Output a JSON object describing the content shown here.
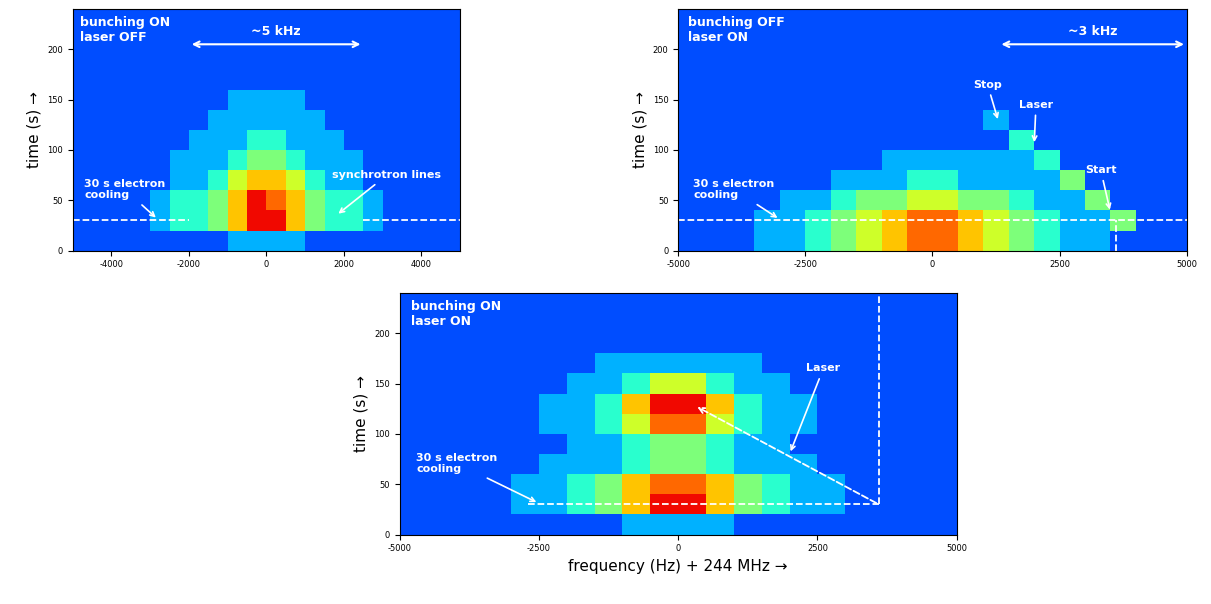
{
  "chart_data": [
    {
      "type": "heatmap",
      "color": "jet",
      "color_range": [
        0,
        10
      ],
      "label": "bunching ON\nlaser OFF",
      "ylabel": "time (s) →",
      "xlim": [
        -5000,
        5000
      ],
      "xticks": [
        -4000,
        -2000,
        0,
        2000,
        4000
      ],
      "ylim": [
        0,
        240
      ],
      "yticks": [
        0,
        50,
        100,
        150,
        200
      ],
      "x_edges": [
        -5000,
        -4500,
        -4000,
        -3500,
        -3000,
        -2500,
        -2000,
        -1500,
        -1000,
        -500,
        0,
        500,
        1000,
        1500,
        2000,
        2500,
        3000,
        3500,
        4000,
        4500,
        5000
      ],
      "y_edges": [
        0,
        20,
        40,
        60,
        80,
        100,
        120,
        140,
        160,
        180,
        200,
        220,
        240
      ],
      "cells": [
        [
          2,
          2,
          2,
          2,
          2,
          2,
          2,
          2,
          3,
          3,
          3,
          3,
          2,
          2,
          2,
          2,
          2,
          2,
          2,
          2
        ],
        [
          2,
          2,
          2,
          2,
          3,
          4,
          4,
          5,
          7,
          9,
          9,
          7,
          5,
          4,
          4,
          3,
          2,
          2,
          2,
          2
        ],
        [
          2,
          2,
          2,
          2,
          3,
          4,
          4,
          5,
          7,
          9,
          8,
          7,
          5,
          4,
          4,
          3,
          2,
          2,
          2,
          2
        ],
        [
          2,
          2,
          2,
          2,
          2,
          3,
          3,
          4,
          6,
          7,
          7,
          6,
          4,
          3,
          3,
          2,
          2,
          2,
          2,
          2
        ],
        [
          2,
          2,
          2,
          2,
          2,
          3,
          3,
          3,
          4,
          5,
          5,
          4,
          3,
          3,
          3,
          2,
          2,
          2,
          2,
          2
        ],
        [
          2,
          2,
          2,
          2,
          2,
          2,
          3,
          3,
          3,
          4,
          4,
          3,
          3,
          3,
          2,
          2,
          2,
          2,
          2,
          2
        ],
        [
          2,
          2,
          2,
          2,
          2,
          2,
          2,
          3,
          3,
          3,
          3,
          3,
          3,
          2,
          2,
          2,
          2,
          2,
          2,
          2
        ],
        [
          2,
          2,
          2,
          2,
          2,
          2,
          2,
          2,
          3,
          3,
          3,
          3,
          2,
          2,
          2,
          2,
          2,
          2,
          2,
          2
        ],
        [
          2,
          2,
          2,
          2,
          2,
          2,
          2,
          2,
          2,
          2,
          2,
          2,
          2,
          2,
          2,
          2,
          2,
          2,
          2,
          2
        ],
        [
          2,
          2,
          2,
          2,
          2,
          2,
          2,
          2,
          2,
          2,
          2,
          2,
          2,
          2,
          2,
          2,
          2,
          2,
          2,
          2
        ],
        [
          2,
          2,
          2,
          2,
          2,
          2,
          2,
          2,
          2,
          2,
          2,
          2,
          2,
          2,
          2,
          2,
          2,
          2,
          2,
          2
        ],
        [
          2,
          2,
          2,
          2,
          2,
          2,
          2,
          2,
          2,
          2,
          2,
          2,
          2,
          2,
          2,
          2,
          2,
          2,
          2,
          2
        ]
      ],
      "spans": [
        {
          "text": "~5 kHz",
          "x": [
            -2000,
            2500
          ],
          "y": 205
        }
      ],
      "annotations": [
        {
          "text": "30 s electron\ncooling",
          "x": -2800,
          "y": 31,
          "text_x": -4700,
          "text_y": 50
        },
        {
          "text": "synchrotron lines",
          "x": 1800,
          "y": 35,
          "text_x": 1700,
          "text_y": 70
        }
      ],
      "lines": [
        {
          "x": [
            -5000,
            -2000
          ],
          "y": [
            30,
            30
          ],
          "line_style": "dashed"
        },
        {
          "x": [
            2500,
            5000
          ],
          "y": [
            30,
            30
          ],
          "line_style": "dashed"
        }
      ],
      "arrows": []
    },
    {
      "type": "heatmap",
      "color": "jet",
      "color_range": [
        0,
        10
      ],
      "label": "bunching OFF\nlaser ON",
      "ylabel": "time (s) →",
      "xlim": [
        -5000,
        5000
      ],
      "xticks": [
        -5000,
        -2500,
        0,
        2500,
        5000
      ],
      "ylim": [
        0,
        240
      ],
      "yticks": [
        0,
        50,
        100,
        150,
        200
      ],
      "x_edges": [
        -5000,
        -4500,
        -4000,
        -3500,
        -3000,
        -2500,
        -2000,
        -1500,
        -1000,
        -500,
        0,
        500,
        1000,
        1500,
        2000,
        2500,
        3000,
        3500,
        4000,
        4500,
        5000
      ],
      "y_edges": [
        0,
        20,
        40,
        60,
        80,
        100,
        120,
        140,
        160,
        180,
        200,
        220,
        240
      ],
      "cells": [
        [
          2,
          2,
          2,
          3,
          3,
          4,
          5,
          6,
          7,
          8,
          8,
          7,
          6,
          5,
          4,
          3,
          3,
          2,
          2,
          2
        ],
        [
          2,
          2,
          2,
          3,
          3,
          4,
          5,
          6,
          7,
          8,
          8,
          7,
          6,
          5,
          4,
          3,
          3,
          5,
          2,
          2
        ],
        [
          2,
          2,
          2,
          2,
          3,
          3,
          4,
          5,
          5,
          6,
          6,
          5,
          5,
          4,
          3,
          3,
          5,
          2,
          2,
          2
        ],
        [
          2,
          2,
          2,
          2,
          2,
          2,
          3,
          3,
          3,
          4,
          4,
          3,
          3,
          3,
          3,
          5,
          2,
          2,
          2,
          2
        ],
        [
          2,
          2,
          2,
          2,
          2,
          2,
          2,
          2,
          3,
          3,
          3,
          3,
          3,
          3,
          4,
          2,
          2,
          2,
          2,
          2
        ],
        [
          2,
          2,
          2,
          2,
          2,
          2,
          2,
          2,
          2,
          2,
          2,
          2,
          2,
          4,
          2,
          2,
          2,
          2,
          2,
          2
        ],
        [
          2,
          2,
          2,
          2,
          2,
          2,
          2,
          2,
          2,
          2,
          2,
          2,
          3,
          2,
          2,
          2,
          2,
          2,
          2,
          2
        ],
        [
          2,
          2,
          2,
          2,
          2,
          2,
          2,
          2,
          2,
          2,
          2,
          2,
          2,
          2,
          2,
          2,
          2,
          2,
          2,
          2
        ],
        [
          2,
          2,
          2,
          2,
          2,
          2,
          2,
          2,
          2,
          2,
          2,
          2,
          2,
          2,
          2,
          2,
          2,
          2,
          2,
          2
        ],
        [
          2,
          2,
          2,
          2,
          2,
          2,
          2,
          2,
          2,
          2,
          2,
          2,
          2,
          2,
          2,
          2,
          2,
          2,
          2,
          2
        ],
        [
          2,
          2,
          2,
          2,
          2,
          2,
          2,
          2,
          2,
          2,
          2,
          2,
          2,
          2,
          2,
          2,
          2,
          2,
          2,
          2
        ],
        [
          2,
          2,
          2,
          2,
          2,
          2,
          2,
          2,
          2,
          2,
          2,
          2,
          2,
          2,
          2,
          2,
          2,
          2,
          2,
          2
        ]
      ],
      "spans": [
        {
          "text": "~3 kHz",
          "x": [
            1300,
            5000
          ],
          "y": 205
        }
      ],
      "annotations": [
        {
          "text": "30 s electron\ncooling",
          "x": -3000,
          "y": 31,
          "text_x": -4700,
          "text_y": 50
        },
        {
          "text": "Stop",
          "x": 1300,
          "y": 128,
          "text_x": 800,
          "text_y": 160
        },
        {
          "text": "Laser",
          "x": 2000,
          "y": 105,
          "text_x": 1700,
          "text_y": 140
        },
        {
          "text": "Start",
          "x": 3500,
          "y": 38,
          "text_x": 3000,
          "text_y": 75
        }
      ],
      "lines": [
        {
          "x": [
            -5000,
            5000
          ],
          "y": [
            30,
            30
          ],
          "line_style": "dashed"
        },
        {
          "x": [
            3600,
            3600
          ],
          "y": [
            0,
            30
          ],
          "line_style": "dashed"
        }
      ],
      "arrows": []
    },
    {
      "type": "heatmap",
      "color": "jet",
      "color_range": [
        0,
        10
      ],
      "label": "bunching ON\nlaser ON",
      "ylabel": "time (s) →",
      "xlabel": "frequency (Hz) + 244 MHz →",
      "xlim": [
        -5000,
        5000
      ],
      "xticks": [
        -5000,
        -2500,
        0,
        2500,
        5000
      ],
      "ylim": [
        0,
        240
      ],
      "yticks": [
        0,
        50,
        100,
        150,
        200
      ],
      "x_edges": [
        -5000,
        -4500,
        -4000,
        -3500,
        -3000,
        -2500,
        -2000,
        -1500,
        -1000,
        -500,
        0,
        500,
        1000,
        1500,
        2000,
        2500,
        3000,
        3500,
        4000,
        4500,
        5000
      ],
      "y_edges": [
        0,
        20,
        40,
        60,
        80,
        100,
        120,
        140,
        160,
        180,
        200,
        220,
        240
      ],
      "cells": [
        [
          2,
          2,
          2,
          2,
          2,
          2,
          2,
          2,
          3,
          3,
          3,
          3,
          2,
          2,
          2,
          2,
          2,
          2,
          2,
          2
        ],
        [
          2,
          2,
          2,
          2,
          3,
          3,
          4,
          5,
          7,
          9,
          9,
          7,
          5,
          4,
          3,
          3,
          2,
          2,
          2,
          2
        ],
        [
          2,
          2,
          2,
          2,
          3,
          3,
          4,
          5,
          7,
          8,
          8,
          7,
          5,
          4,
          3,
          3,
          2,
          2,
          2,
          2
        ],
        [
          2,
          2,
          2,
          2,
          2,
          3,
          3,
          3,
          4,
          5,
          5,
          4,
          3,
          3,
          3,
          2,
          2,
          2,
          2,
          2
        ],
        [
          2,
          2,
          2,
          2,
          2,
          2,
          3,
          3,
          4,
          5,
          5,
          4,
          3,
          3,
          2,
          2,
          2,
          2,
          2,
          2
        ],
        [
          2,
          2,
          2,
          2,
          2,
          3,
          3,
          4,
          6,
          8,
          8,
          6,
          4,
          3,
          3,
          2,
          2,
          2,
          2,
          2
        ],
        [
          2,
          2,
          2,
          2,
          2,
          3,
          3,
          4,
          7,
          9,
          9,
          7,
          4,
          3,
          3,
          2,
          2,
          2,
          2,
          2
        ],
        [
          2,
          2,
          2,
          2,
          2,
          2,
          3,
          3,
          4,
          6,
          6,
          4,
          3,
          3,
          2,
          2,
          2,
          2,
          2,
          2
        ],
        [
          2,
          2,
          2,
          2,
          2,
          2,
          2,
          3,
          3,
          3,
          3,
          3,
          3,
          2,
          2,
          2,
          2,
          2,
          2,
          2
        ],
        [
          2,
          2,
          2,
          2,
          2,
          2,
          2,
          2,
          2,
          2,
          2,
          2,
          2,
          2,
          2,
          2,
          2,
          2,
          2,
          2
        ],
        [
          2,
          2,
          2,
          2,
          2,
          2,
          2,
          2,
          2,
          2,
          2,
          2,
          2,
          2,
          2,
          2,
          2,
          2,
          2,
          2
        ],
        [
          2,
          2,
          2,
          2,
          2,
          2,
          2,
          2,
          2,
          2,
          2,
          2,
          2,
          2,
          2,
          2,
          2,
          2,
          2,
          2
        ]
      ],
      "spans": [],
      "annotations": [
        {
          "text": "30 s electron\ncooling",
          "x": -2500,
          "y": 31,
          "text_x": -4700,
          "text_y": 60
        },
        {
          "text": "Laser",
          "x": 2000,
          "y": 80,
          "text_x": 2300,
          "text_y": 160
        }
      ],
      "lines": [
        {
          "x": [
            -2700,
            3600
          ],
          "y": [
            30,
            30
          ],
          "line_style": "dashed"
        },
        {
          "x": [
            3600,
            3600
          ],
          "y": [
            30,
            240
          ],
          "line_style": "dashed"
        }
      ],
      "arrows": [
        {
          "x": [
            3600,
            300
          ],
          "y": [
            30,
            128
          ],
          "line_style": "dashed"
        }
      ]
    }
  ]
}
